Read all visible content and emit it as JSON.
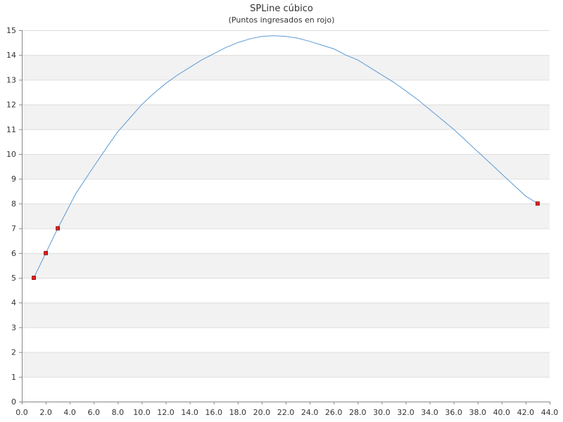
{
  "chart_data": {
    "type": "line",
    "title": "SPLine cúbico",
    "subtitle": "(Puntos ingresados en rojo)",
    "xlabel": "",
    "ylabel": "",
    "xlim": [
      0,
      44
    ],
    "ylim": [
      0,
      15
    ],
    "grid": true,
    "x_ticks": [
      "0.0",
      "2.0",
      "4.0",
      "6.0",
      "8.0",
      "10.0",
      "12.0",
      "14.0",
      "16.0",
      "18.0",
      "20.0",
      "22.0",
      "24.0",
      "26.0",
      "28.0",
      "30.0",
      "32.0",
      "34.0",
      "36.0",
      "38.0",
      "40.0",
      "42.0",
      "44.0"
    ],
    "y_ticks": [
      "0",
      "1",
      "2",
      "3",
      "4",
      "5",
      "6",
      "7",
      "8",
      "9",
      "10",
      "11",
      "12",
      "13",
      "14",
      "15"
    ],
    "series": [
      {
        "kind": "curve",
        "color": "#5b9bd5",
        "points": [
          [
            1,
            5.0
          ],
          [
            2,
            6.0
          ],
          [
            3,
            7.0
          ],
          [
            4.5,
            8.4
          ],
          [
            6,
            9.5
          ],
          [
            7.2,
            10.35
          ],
          [
            8,
            10.9
          ],
          [
            9,
            11.45
          ],
          [
            10,
            12.0
          ],
          [
            11,
            12.45
          ],
          [
            12,
            12.85
          ],
          [
            13,
            13.2
          ],
          [
            14,
            13.5
          ],
          [
            15,
            13.8
          ],
          [
            16,
            14.05
          ],
          [
            17,
            14.3
          ],
          [
            18,
            14.5
          ],
          [
            19,
            14.65
          ],
          [
            20,
            14.75
          ],
          [
            21,
            14.78
          ],
          [
            22,
            14.75
          ],
          [
            23,
            14.68
          ],
          [
            24,
            14.55
          ],
          [
            25,
            14.4
          ],
          [
            26,
            14.25
          ],
          [
            27,
            14.0
          ],
          [
            28,
            13.8
          ],
          [
            29,
            13.5
          ],
          [
            30,
            13.2
          ],
          [
            31,
            12.9
          ],
          [
            32,
            12.55
          ],
          [
            33,
            12.2
          ],
          [
            34,
            11.8
          ],
          [
            35,
            11.4
          ],
          [
            36,
            11.0
          ],
          [
            37,
            10.55
          ],
          [
            38,
            10.1
          ],
          [
            39,
            9.65
          ],
          [
            40,
            9.2
          ],
          [
            41,
            8.75
          ],
          [
            42,
            8.3
          ],
          [
            43,
            8.0
          ]
        ]
      },
      {
        "kind": "markers",
        "color": "#e02020",
        "points": [
          [
            1,
            5
          ],
          [
            2,
            6
          ],
          [
            3,
            7
          ],
          [
            43,
            8
          ]
        ]
      }
    ],
    "colors": {
      "band": "#f2f2f2",
      "gridline": "#dddddd",
      "axis": "#888888",
      "marker_stroke": "#8a0000"
    }
  }
}
